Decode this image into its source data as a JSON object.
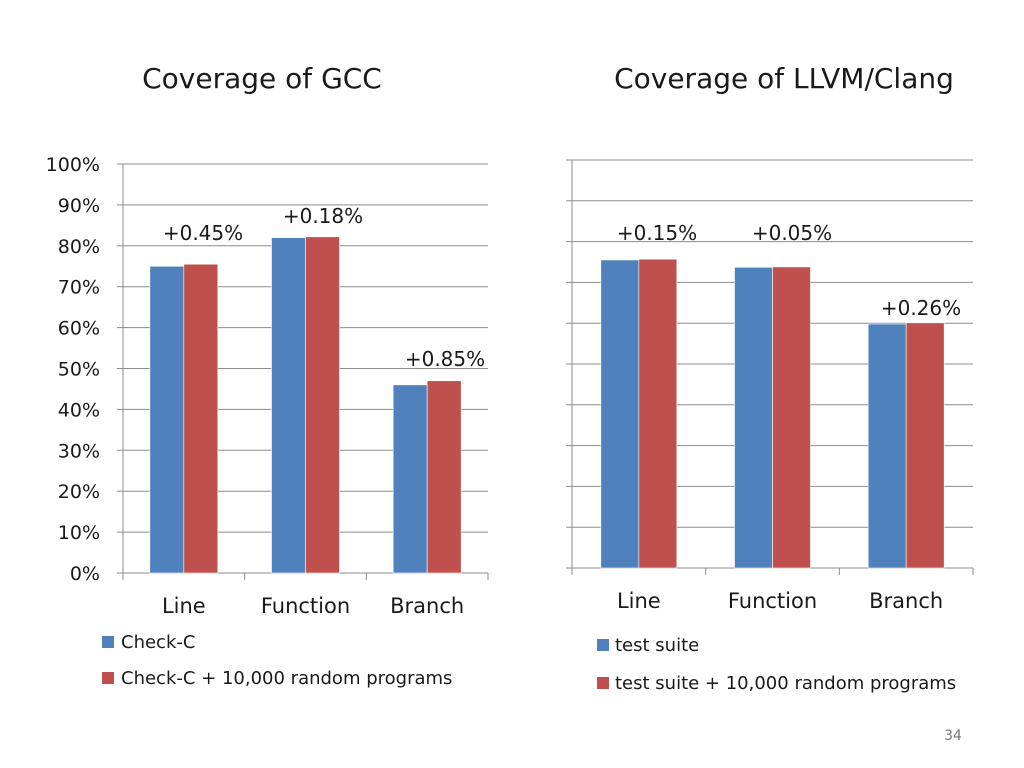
{
  "colors": {
    "series1": "#4f81bd",
    "series2": "#c0504d",
    "grid": "#8c8c8c"
  },
  "page_number": "34",
  "chart_data": [
    {
      "type": "bar",
      "title": "Coverage of GCC",
      "categories": [
        "Line",
        "Function",
        "Branch"
      ],
      "ylim": [
        0,
        100
      ],
      "yticks": [
        "0%",
        "10%",
        "20%",
        "30%",
        "40%",
        "50%",
        "60%",
        "70%",
        "80%",
        "90%",
        "100%"
      ],
      "series": [
        {
          "name": "Check-C",
          "values": [
            75,
            82,
            46
          ]
        },
        {
          "name": "Check-C + 10,000 random programs",
          "values": [
            75.5,
            82.2,
            47
          ]
        }
      ],
      "annotations": [
        "+0.45%",
        "+0.18%",
        "+0.85%"
      ],
      "legend": [
        "Check-C",
        "Check-C + 10,000 random programs"
      ]
    },
    {
      "type": "bar",
      "title": "Coverage of LLVM/Clang",
      "categories": [
        "Line",
        "Function",
        "Branch"
      ],
      "ylim": [
        0,
        100
      ],
      "series": [
        {
          "name": "test suite",
          "values": [
            75.5,
            73.7,
            59.8
          ]
        },
        {
          "name": "test suite + 10,000 random programs",
          "values": [
            75.7,
            73.8,
            60.1
          ]
        }
      ],
      "annotations": [
        "+0.15%",
        "+0.05%",
        "+0.26%"
      ],
      "legend": [
        "test suite",
        "test suite + 10,000 random programs"
      ]
    }
  ]
}
